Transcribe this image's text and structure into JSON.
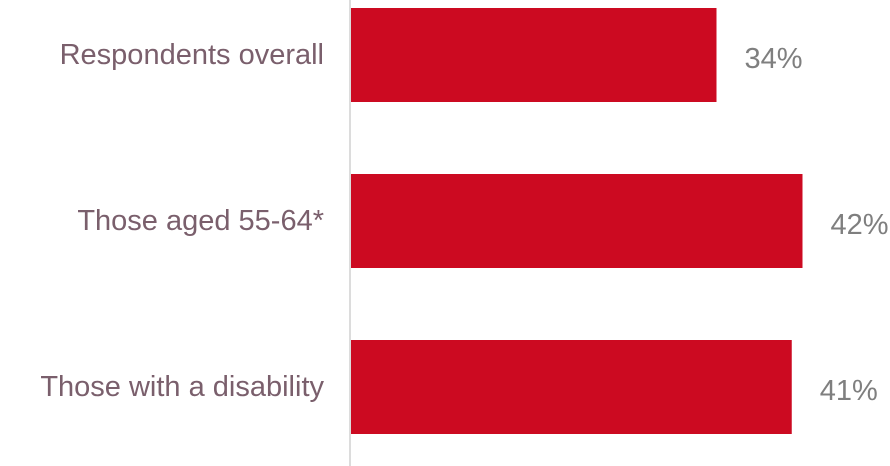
{
  "chart_data": {
    "type": "bar",
    "orientation": "horizontal",
    "categories": [
      "Respondents overall",
      "Those aged 55-64*",
      "Those with a disability"
    ],
    "values": [
      34,
      42,
      41
    ],
    "value_labels": [
      "34%",
      "42%",
      "41%"
    ],
    "unit": "%",
    "xlim": [
      0,
      50
    ],
    "grid": false,
    "legend": "none",
    "bar_color": "#cc0a21"
  }
}
